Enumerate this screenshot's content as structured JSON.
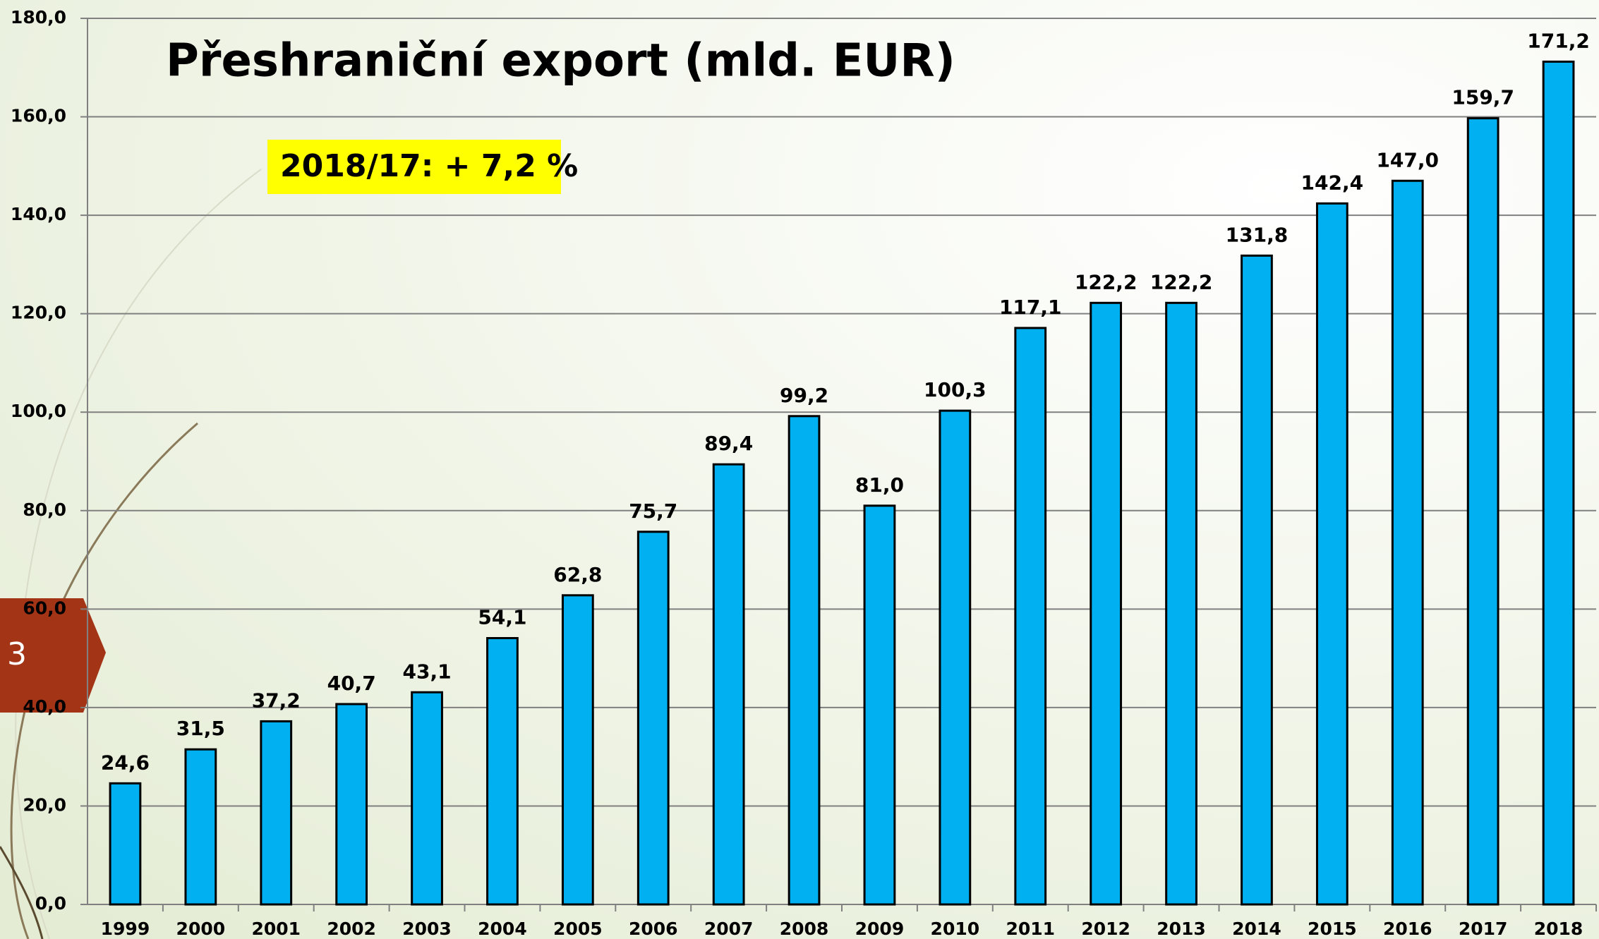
{
  "chart_data": {
    "type": "bar",
    "title": "Přeshraniční export (mld. EUR)",
    "annotation": "2018/17: + 7,2 %",
    "categories": [
      "1999",
      "2000",
      "2001",
      "2002",
      "2003",
      "2004",
      "2005",
      "2006",
      "2007",
      "2008",
      "2009",
      "2010",
      "2011",
      "2012",
      "2013",
      "2014",
      "2015",
      "2016",
      "2017",
      "2018"
    ],
    "values": [
      24.6,
      31.5,
      37.2,
      40.7,
      43.1,
      54.1,
      62.8,
      75.7,
      89.4,
      99.2,
      81.0,
      100.3,
      117.1,
      122.2,
      122.2,
      131.8,
      142.4,
      147.0,
      159.7,
      171.2
    ],
    "value_labels": [
      "24,6",
      "31,5",
      "37,2",
      "40,7",
      "43,1",
      "54,1",
      "62,8",
      "75,7",
      "89,4",
      "99,2",
      "81,0",
      "100,3",
      "117,1",
      "122,2",
      "122,2",
      "131,8",
      "142,4",
      "147,0",
      "159,7",
      "171,2"
    ],
    "color": "#00b0f0",
    "ylim": [
      0,
      180
    ],
    "yticks": [
      {
        "value": 0,
        "label": "0,0"
      },
      {
        "value": 20,
        "label": "20,0"
      },
      {
        "value": 40,
        "label": "40,0"
      },
      {
        "value": 60,
        "label": "60,0"
      },
      {
        "value": 80,
        "label": "80,0"
      },
      {
        "value": 100,
        "label": "100,0"
      },
      {
        "value": 120,
        "label": "120,0"
      },
      {
        "value": 140,
        "label": "140,0"
      },
      {
        "value": 160,
        "label": "160,0"
      },
      {
        "value": 180,
        "label": "180,0"
      }
    ],
    "grid": true
  },
  "slide_number": "3"
}
